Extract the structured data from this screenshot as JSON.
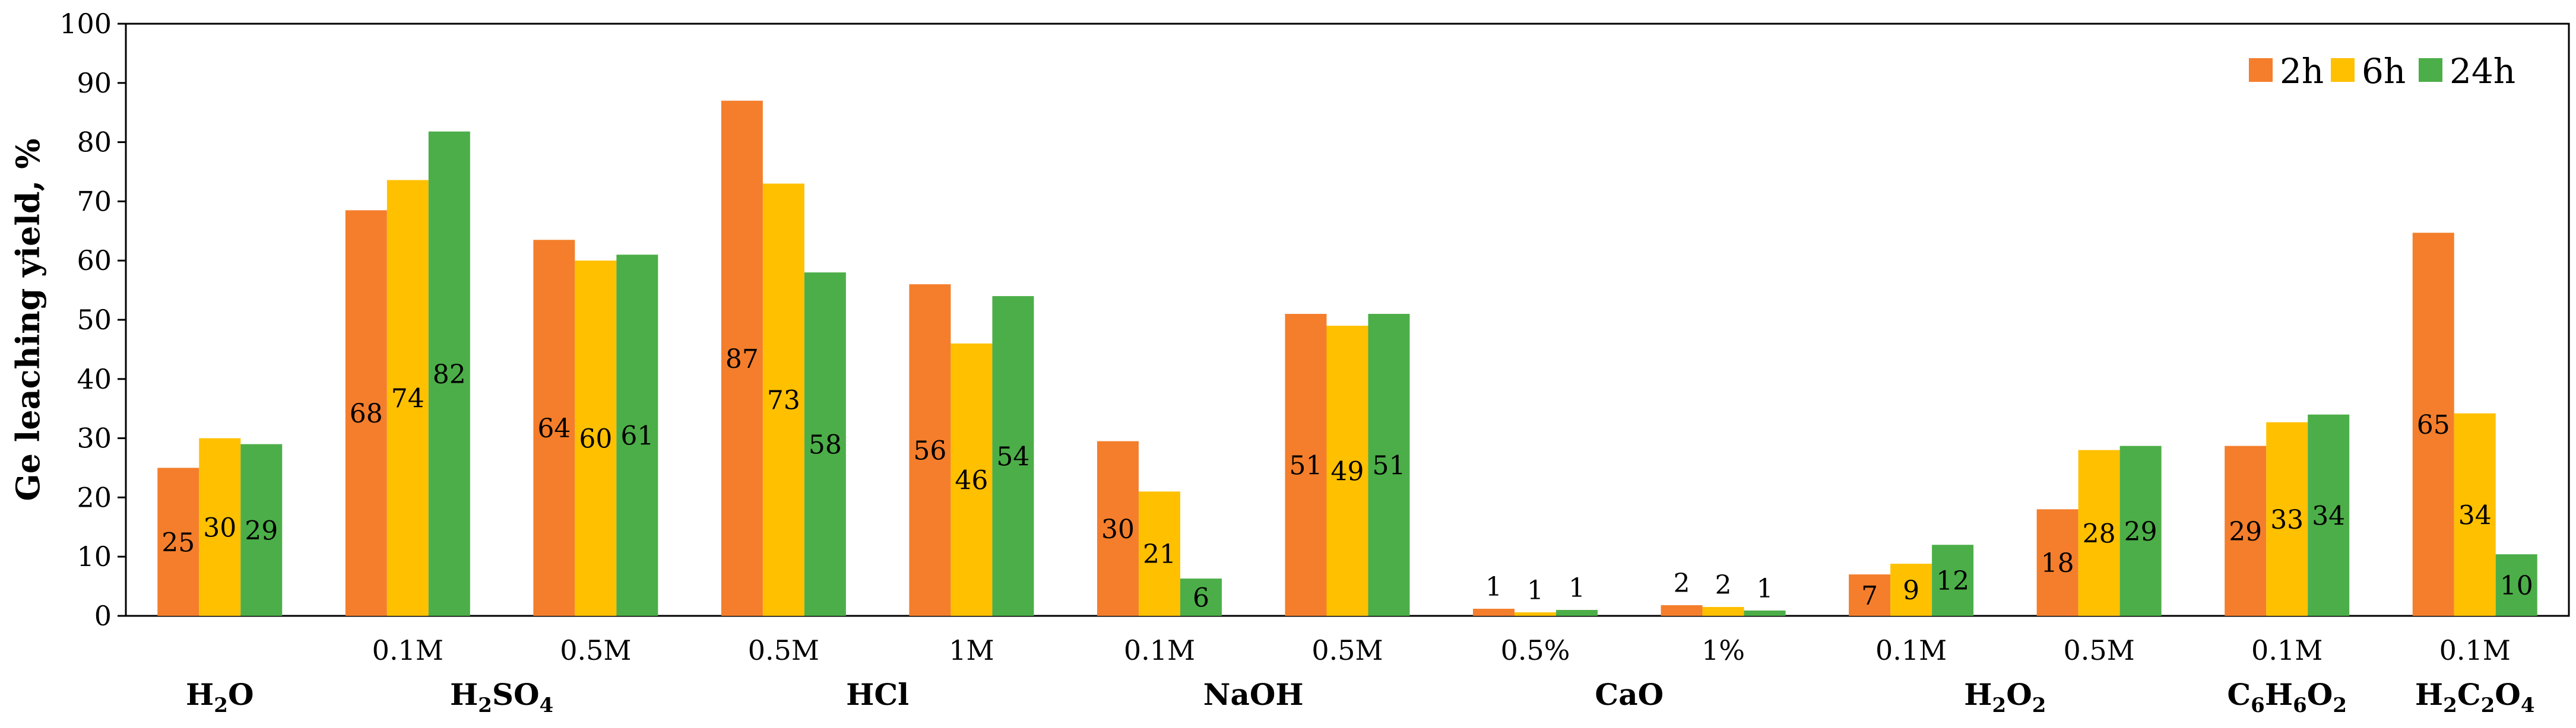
{
  "chart_data": {
    "type": "bar",
    "ylabel": "Ge leaching yield, %",
    "ylim": [
      0,
      100
    ],
    "yticks": [
      0,
      10,
      20,
      30,
      40,
      50,
      60,
      70,
      80,
      90,
      100
    ],
    "grid": false,
    "legend_position": "top-right",
    "categories": [
      "",
      "0.1M",
      "0.5M",
      "0.5M",
      "1M",
      "0.1M",
      "0.5M",
      "0.5%",
      "1%",
      "0.1M",
      "0.5M",
      "0.1M",
      "0.1M"
    ],
    "groups": [
      {
        "name": "H2O",
        "base": "H",
        "subs": [
          [
            "2",
            "O"
          ]
        ],
        "span": [
          0,
          0
        ]
      },
      {
        "name": "H2SO4",
        "base": "H",
        "subs": [
          [
            "2",
            "SO"
          ],
          [
            "4",
            ""
          ]
        ],
        "span": [
          1,
          2
        ]
      },
      {
        "name": "HCl",
        "base": "HCl",
        "subs": [],
        "span": [
          3,
          4
        ]
      },
      {
        "name": "NaOH",
        "base": "NaOH",
        "subs": [],
        "span": [
          5,
          6
        ]
      },
      {
        "name": "CaO",
        "base": "CaO",
        "subs": [],
        "span": [
          7,
          8
        ]
      },
      {
        "name": "H2O2",
        "base": "H",
        "subs": [
          [
            "2",
            "O"
          ],
          [
            "2",
            ""
          ]
        ],
        "span": [
          9,
          10
        ]
      },
      {
        "name": "C6H6O2",
        "base": "C",
        "subs": [
          [
            "6",
            "H"
          ],
          [
            "6",
            "O"
          ],
          [
            "2",
            ""
          ]
        ],
        "span": [
          11,
          11
        ]
      },
      {
        "name": "H2C2O4",
        "base": "H",
        "subs": [
          [
            "2",
            "C"
          ],
          [
            "2",
            "O"
          ],
          [
            "4",
            ""
          ]
        ],
        "span": [
          12,
          12
        ]
      }
    ],
    "series": [
      {
        "name": "2h",
        "color": "#F47E2C",
        "values": [
          25,
          68.5,
          63.5,
          87,
          56,
          29.5,
          51,
          1.2,
          1.8,
          7,
          18,
          28.7,
          64.7
        ],
        "labels": [
          "25",
          "68",
          "64",
          "87",
          "56",
          "30",
          "51",
          "1",
          "2",
          "7",
          "18",
          "29",
          "65"
        ]
      },
      {
        "name": "6h",
        "color": "#FFC000",
        "values": [
          30,
          73.6,
          60,
          73,
          46,
          21,
          49,
          0.6,
          1.5,
          8.8,
          28,
          32.7,
          34.2
        ],
        "labels": [
          "30",
          "74",
          "60",
          "73",
          "46",
          "21",
          "49",
          "1",
          "2",
          "9",
          "28",
          "33",
          "34"
        ]
      },
      {
        "name": "24h",
        "color": "#4CAE48",
        "values": [
          29,
          81.8,
          61,
          58,
          54,
          6.3,
          51,
          1,
          0.9,
          12,
          28.7,
          34,
          10.4
        ],
        "labels": [
          "29",
          "82",
          "61",
          "58",
          "54",
          "6",
          "51",
          "1",
          "1",
          "12",
          "29",
          "34",
          "10"
        ]
      }
    ]
  }
}
